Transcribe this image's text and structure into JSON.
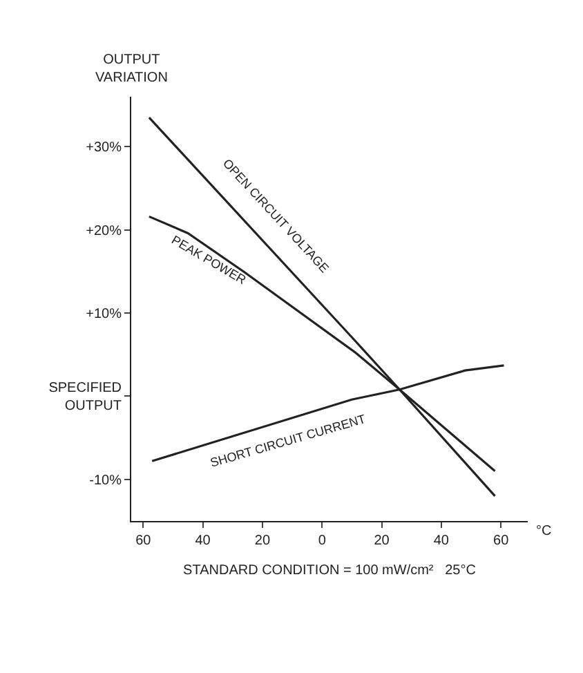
{
  "chart_data": {
    "type": "line",
    "ylabel": "OUTPUT VARIATION",
    "xlabel": "STANDARD CONDITION = 100 mW/cm²   25°C",
    "annotations": [
      "°C"
    ],
    "xlim": [
      -64,
      69
    ],
    "ylim": [
      -15,
      36
    ],
    "xticks": [
      {
        "value": -60,
        "label": "60"
      },
      {
        "value": -40,
        "label": "40"
      },
      {
        "value": -20,
        "label": "20"
      },
      0,
      20,
      40,
      60
    ],
    "yticks": [
      {
        "value": -10,
        "label": "-10%"
      },
      {
        "value": 0,
        "label": "SPECIFIED OUTPUT"
      },
      {
        "value": 10,
        "label": "+10%"
      },
      {
        "value": 20,
        "label": "+20%"
      },
      {
        "value": 30,
        "label": "+30%"
      }
    ],
    "grid": false,
    "legend": false,
    "marker": "none",
    "line_style": "solid",
    "series": [
      {
        "name": "OPEN CIRCUIT VOLTAGE",
        "color": "#222222",
        "x": [
          -58,
          11,
          26,
          58
        ],
        "values": [
          33.5,
          6.7,
          0.8,
          -12
        ]
      },
      {
        "name": "PEAK POWER",
        "color": "#222222",
        "x": [
          -58,
          -45,
          -26,
          11,
          26,
          58
        ],
        "values": [
          21.6,
          19.6,
          14.9,
          5.3,
          0.8,
          -9
        ]
      },
      {
        "name": "SHORT CIRCUIT CURRENT",
        "color": "#222222",
        "x": [
          -57,
          10,
          26,
          48,
          61
        ],
        "values": [
          -7.8,
          -0.4,
          0.8,
          3.1,
          3.7
        ]
      }
    ]
  }
}
